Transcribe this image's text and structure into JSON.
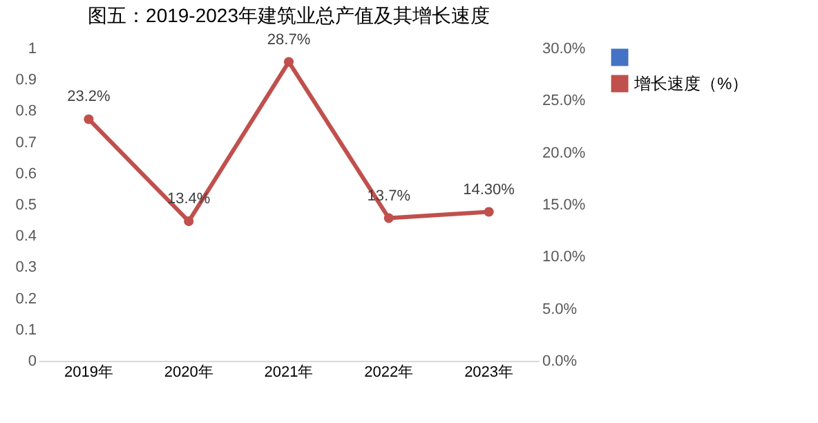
{
  "chart_data": {
    "type": "line",
    "title": "图五：2019-2023年建筑业总产值及其增长速度",
    "categories": [
      "2019年",
      "2020年",
      "2021年",
      "2022年",
      "2023年"
    ],
    "series": [
      {
        "type": "bar",
        "color": "#4472c4",
        "values": [
          null,
          null,
          null,
          null,
          null
        ]
      },
      {
        "name": "增长速度（%）",
        "color": "#c0504d",
        "axis": "y2",
        "values": [
          23.2,
          13.4,
          28.7,
          13.7,
          14.3
        ],
        "value_labels": [
          "23.2%",
          "13.4%",
          "28.7%",
          "13.7%",
          "14.30%"
        ]
      }
    ],
    "ylim": [
      0,
      1
    ],
    "yticks": [
      0,
      0.1,
      0.2,
      0.3,
      0.4,
      0.5,
      0.6,
      0.7,
      0.8,
      0.9,
      1
    ],
    "y2lim": [
      0,
      30
    ],
    "y2ticks": [
      {
        "value": 0,
        "label": "0.0%"
      },
      {
        "value": 5,
        "label": "5.0%"
      },
      {
        "value": 10,
        "label": "10.0%"
      },
      {
        "value": 15,
        "label": "15.0%"
      },
      {
        "value": 20,
        "label": "20.0%"
      },
      {
        "value": 25,
        "label": "25.0%"
      },
      {
        "value": 30,
        "label": "30.0%"
      }
    ],
    "marker": "circle",
    "legend": "right",
    "grid": false
  }
}
